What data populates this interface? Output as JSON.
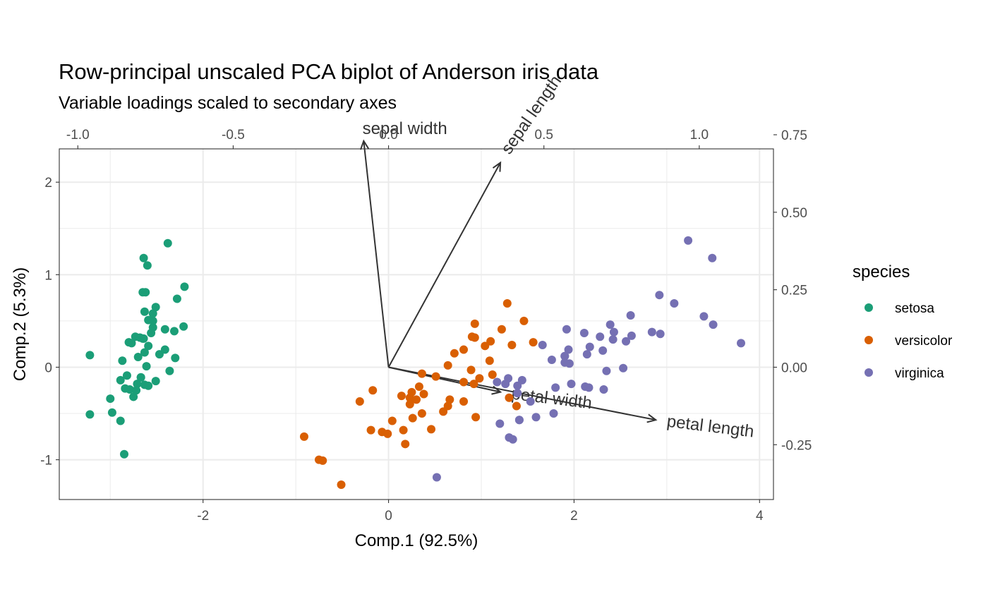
{
  "chart_data": {
    "type": "scatter",
    "title": "Row-principal unscaled PCA biplot of Anderson iris data",
    "subtitle": "Variable loadings scaled to secondary axes",
    "xlabel": "Comp.1 (92.5%)",
    "ylabel": "Comp.2 (5.3%)",
    "xlim": [
      -3.55,
      4.15
    ],
    "ylim": [
      -1.43,
      2.36
    ],
    "x_ticks": [
      -2,
      0,
      2,
      4
    ],
    "x_tick_labels": [
      "-2",
      "0",
      "2",
      "4"
    ],
    "y_ticks": [
      -1,
      0,
      1,
      2
    ],
    "y_tick_labels": [
      "-1",
      "0",
      "1",
      "2"
    ],
    "secondary_x_ticks": [
      -1.0,
      -0.5,
      0.0,
      0.5,
      1.0
    ],
    "secondary_x_tick_labels": [
      "-1.0",
      "-0.5",
      "0.0",
      "0.5",
      "1.0"
    ],
    "secondary_y_ticks": [
      0.75,
      0.5,
      0.25,
      0.0,
      -0.25
    ],
    "secondary_y_tick_labels": [
      "0.75",
      "0.50",
      "0.25",
      "0.00",
      "-0.25"
    ],
    "secondary_scale": 0.2985,
    "grid": true,
    "legend": {
      "title": "species",
      "position": "right"
    },
    "series": [
      {
        "name": "setosa",
        "color": "#1b9e77",
        "points": [
          [
            -2.68,
            0.32
          ],
          [
            -2.71,
            -0.18
          ],
          [
            -2.89,
            -0.14
          ],
          [
            -2.75,
            -0.32
          ],
          [
            -2.73,
            0.33
          ],
          [
            -2.28,
            0.74
          ],
          [
            -2.82,
            -0.09
          ],
          [
            -2.63,
            0.16
          ],
          [
            -2.89,
            -0.58
          ],
          [
            -2.67,
            -0.11
          ],
          [
            -2.51,
            0.65
          ],
          [
            -2.61,
            0.01
          ],
          [
            -2.79,
            -0.24
          ],
          [
            -3.22,
            -0.51
          ],
          [
            -2.64,
            1.18
          ],
          [
            -2.38,
            1.34
          ],
          [
            -2.62,
            0.81
          ],
          [
            -2.65,
            0.31
          ],
          [
            -2.2,
            0.87
          ],
          [
            -2.59,
            0.51
          ],
          [
            -2.31,
            0.39
          ],
          [
            -2.54,
            0.43
          ],
          [
            -3.22,
            0.13
          ],
          [
            -2.3,
            0.1
          ],
          [
            -2.36,
            -0.04
          ],
          [
            -2.51,
            -0.15
          ],
          [
            -2.47,
            0.14
          ],
          [
            -2.56,
            0.37
          ],
          [
            -2.64,
            0.31
          ],
          [
            -2.63,
            -0.19
          ],
          [
            -2.59,
            -0.2
          ],
          [
            -2.41,
            0.41
          ],
          [
            -2.65,
            0.81
          ],
          [
            -2.6,
            1.1
          ],
          [
            -2.67,
            -0.11
          ],
          [
            -2.87,
            0.07
          ],
          [
            -2.63,
            0.6
          ],
          [
            -2.8,
            0.27
          ],
          [
            -2.98,
            -0.49
          ],
          [
            -2.59,
            0.23
          ],
          [
            -2.77,
            0.26
          ],
          [
            -2.85,
            -0.94
          ],
          [
            -3.0,
            -0.34
          ],
          [
            -2.41,
            0.19
          ],
          [
            -2.21,
            0.44
          ],
          [
            -2.72,
            -0.25
          ],
          [
            -2.54,
            0.5
          ],
          [
            -2.84,
            -0.23
          ],
          [
            -2.54,
            0.58
          ],
          [
            -2.7,
            0.11
          ]
        ]
      },
      {
        "name": "versicolor",
        "color": "#d95f02",
        "points": [
          [
            1.28,
            0.69
          ],
          [
            0.93,
            0.32
          ],
          [
            1.46,
            0.5
          ],
          [
            0.18,
            -0.83
          ],
          [
            1.09,
            0.07
          ],
          [
            0.64,
            -0.42
          ],
          [
            1.1,
            0.28
          ],
          [
            -0.75,
            -1.0
          ],
          [
            1.04,
            0.23
          ],
          [
            -0.01,
            -0.72
          ],
          [
            -0.51,
            -1.27
          ],
          [
            0.51,
            -0.1
          ],
          [
            0.26,
            -0.55
          ],
          [
            0.98,
            -0.12
          ],
          [
            -0.17,
            -0.25
          ],
          [
            0.93,
            0.47
          ],
          [
            0.66,
            -0.35
          ],
          [
            0.23,
            -0.33
          ],
          [
            0.94,
            -0.54
          ],
          [
            0.04,
            -0.58
          ],
          [
            1.12,
            -0.08
          ],
          [
            0.36,
            -0.07
          ],
          [
            1.3,
            -0.33
          ],
          [
            0.92,
            -0.18
          ],
          [
            0.71,
            0.15
          ],
          [
            0.9,
            0.33
          ],
          [
            1.33,
            0.24
          ],
          [
            1.56,
            0.27
          ],
          [
            0.81,
            -0.16
          ],
          [
            -0.31,
            -0.37
          ],
          [
            -0.07,
            -0.7
          ],
          [
            -0.19,
            -0.68
          ],
          [
            0.14,
            -0.31
          ],
          [
            1.38,
            -0.42
          ],
          [
            0.59,
            -0.48
          ],
          [
            0.81,
            0.19
          ],
          [
            1.22,
            0.41
          ],
          [
            0.81,
            -0.37
          ],
          [
            0.25,
            -0.27
          ],
          [
            0.16,
            -0.68
          ],
          [
            0.46,
            -0.67
          ],
          [
            0.89,
            -0.03
          ],
          [
            0.23,
            -0.4
          ],
          [
            -0.71,
            -1.01
          ],
          [
            0.36,
            -0.5
          ],
          [
            0.33,
            -0.21
          ],
          [
            0.38,
            -0.29
          ],
          [
            0.64,
            0.02
          ],
          [
            -0.91,
            -0.75
          ],
          [
            0.3,
            -0.35
          ]
        ]
      },
      {
        "name": "virginica",
        "color": "#7570b3",
        "points": [
          [
            2.53,
            -0.01
          ],
          [
            1.41,
            -0.57
          ],
          [
            2.62,
            0.34
          ],
          [
            1.97,
            -0.18
          ],
          [
            2.35,
            -0.04
          ],
          [
            3.4,
            0.55
          ],
          [
            0.52,
            -1.19
          ],
          [
            2.93,
            0.36
          ],
          [
            2.32,
            -0.24
          ],
          [
            2.92,
            0.78
          ],
          [
            1.66,
            0.24
          ],
          [
            1.8,
            -0.22
          ],
          [
            2.17,
            0.22
          ],
          [
            1.34,
            -0.78
          ],
          [
            1.59,
            -0.54
          ],
          [
            1.9,
            0.12
          ],
          [
            1.95,
            0.04
          ],
          [
            3.49,
            1.18
          ],
          [
            3.8,
            0.26
          ],
          [
            1.3,
            -0.76
          ],
          [
            2.43,
            0.38
          ],
          [
            1.2,
            -0.61
          ],
          [
            3.5,
            0.46
          ],
          [
            1.39,
            -0.2
          ],
          [
            2.28,
            0.33
          ],
          [
            2.61,
            0.56
          ],
          [
            1.26,
            -0.18
          ],
          [
            1.29,
            -0.12
          ],
          [
            2.12,
            -0.21
          ],
          [
            2.39,
            0.46
          ],
          [
            2.84,
            0.38
          ],
          [
            3.23,
            1.37
          ],
          [
            2.16,
            -0.22
          ],
          [
            1.44,
            -0.14
          ],
          [
            1.78,
            -0.5
          ],
          [
            3.08,
            0.69
          ],
          [
            2.14,
            0.14
          ],
          [
            1.9,
            0.05
          ],
          [
            1.17,
            -0.16
          ],
          [
            2.11,
            0.37
          ],
          [
            2.31,
            0.18
          ],
          [
            1.92,
            0.41
          ],
          [
            1.41,
            -0.57
          ],
          [
            2.56,
            0.28
          ],
          [
            2.42,
            0.3
          ],
          [
            1.94,
            0.19
          ],
          [
            1.53,
            -0.37
          ],
          [
            1.76,
            0.08
          ],
          [
            1.9,
            0.12
          ],
          [
            1.39,
            -0.28
          ]
        ]
      }
    ],
    "loadings": [
      {
        "name": "petal length",
        "x": 0.86,
        "y": -0.17
      },
      {
        "name": "petal width",
        "x": 0.36,
        "y": -0.08
      },
      {
        "name": "sepal length",
        "x": 0.36,
        "y": 0.66
      },
      {
        "name": "sepal width",
        "x": -0.08,
        "y": 0.73
      }
    ]
  }
}
